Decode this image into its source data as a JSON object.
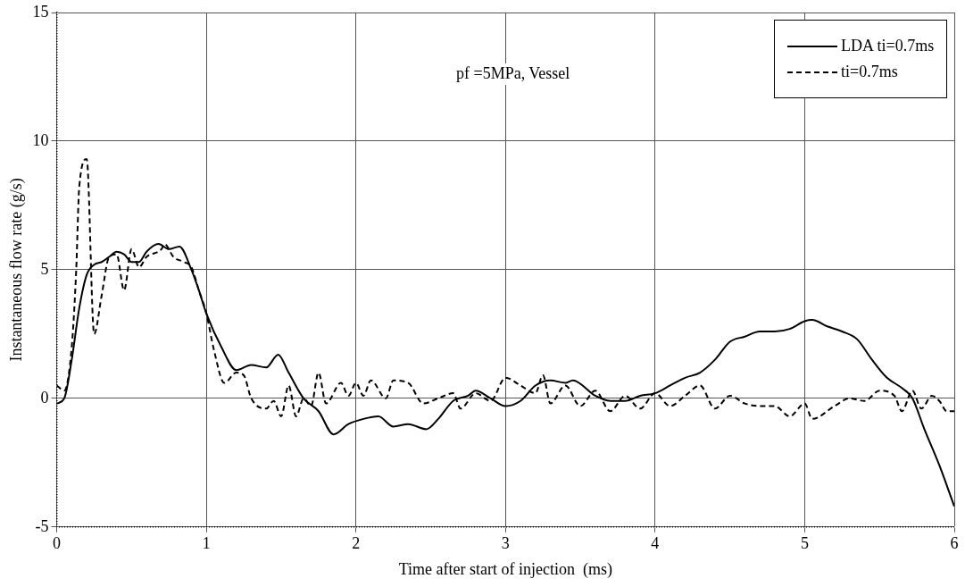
{
  "chart_data": {
    "type": "line",
    "xlabel": "Time after start of injection  (ms)",
    "ylabel": "Instantaneous flow rate (g/s)",
    "annotations": [
      "pf =5MPa, Vessel"
    ],
    "xlim": [
      0,
      6
    ],
    "xticks": [
      0,
      1,
      2,
      3,
      4,
      5,
      6
    ],
    "ylim": [
      -5,
      15
    ],
    "yticks": [
      -5,
      0,
      5,
      10,
      15
    ],
    "grid": true,
    "legend": "top right",
    "marker": "none",
    "series": [
      {
        "name": "LDA ti=0.7ms",
        "color": "#000000",
        "line_style": "solid",
        "x": [
          0,
          0.05,
          0.1,
          0.15,
          0.2,
          0.25,
          0.3,
          0.35,
          0.4,
          0.45,
          0.5,
          0.55,
          0.6,
          0.68,
          0.75,
          0.82,
          0.9,
          0.95,
          1.0,
          1.1,
          1.2,
          1.3,
          1.4,
          1.48,
          1.55,
          1.65,
          1.75,
          1.85,
          1.95,
          2.05,
          2.15,
          2.25,
          2.35,
          2.47,
          2.55,
          2.65,
          2.75,
          2.8,
          2.9,
          3.0,
          3.1,
          3.2,
          3.3,
          3.4,
          3.45,
          3.6,
          3.7,
          3.8,
          3.9,
          4.0,
          4.1,
          4.2,
          4.3,
          4.4,
          4.5,
          4.6,
          4.7,
          4.8,
          4.9,
          5.0,
          5.05,
          5.15,
          5.25,
          5.35,
          5.45,
          5.55,
          5.65,
          5.72,
          5.8,
          5.9,
          6.0
        ],
        "values": [
          -0.2,
          0,
          1.5,
          3.5,
          4.8,
          5.2,
          5.3,
          5.5,
          5.7,
          5.6,
          5.3,
          5.3,
          5.7,
          6.0,
          5.8,
          5.9,
          5.0,
          4.2,
          3.3,
          2.0,
          1.1,
          1.3,
          1.2,
          1.7,
          1.0,
          0,
          -0.5,
          -1.4,
          -1.0,
          -0.8,
          -0.7,
          -1.1,
          -1.0,
          -1.2,
          -0.8,
          -0.1,
          0.1,
          0.3,
          0,
          -0.3,
          -0.1,
          0.5,
          0.7,
          0.6,
          0.7,
          0.1,
          -0.1,
          -0.1,
          0.1,
          0.2,
          0.5,
          0.8,
          1.0,
          1.5,
          2.2,
          2.4,
          2.6,
          2.6,
          2.7,
          3.0,
          3.05,
          2.8,
          2.6,
          2.3,
          1.5,
          0.8,
          0.4,
          0,
          -1.2,
          -2.6,
          -4.2
        ]
      },
      {
        "name": "ti=0.7ms",
        "color": "#000000",
        "line_style": "dashed",
        "x": [
          0,
          0.05,
          0.1,
          0.13,
          0.15,
          0.2,
          0.25,
          0.3,
          0.35,
          0.4,
          0.45,
          0.5,
          0.55,
          0.6,
          0.7,
          0.72,
          0.78,
          0.85,
          0.9,
          0.95,
          1.0,
          1.05,
          1.12,
          1.2,
          1.25,
          1.3,
          1.4,
          1.45,
          1.5,
          1.55,
          1.6,
          1.65,
          1.7,
          1.75,
          1.8,
          1.9,
          1.95,
          2.0,
          2.05,
          2.1,
          2.2,
          2.25,
          2.35,
          2.45,
          2.55,
          2.65,
          2.7,
          2.8,
          2.9,
          3.0,
          3.1,
          3.2,
          3.25,
          3.3,
          3.4,
          3.5,
          3.6,
          3.7,
          3.8,
          3.9,
          4.0,
          4.1,
          4.2,
          4.3,
          4.4,
          4.5,
          4.6,
          4.7,
          4.8,
          4.9,
          5.0,
          5.05,
          5.2,
          5.3,
          5.4,
          5.5,
          5.6,
          5.65,
          5.72,
          5.78,
          5.85,
          5.9,
          5.95,
          6.0
        ],
        "values": [
          0.5,
          0.3,
          2,
          5,
          8.2,
          9.3,
          2.5,
          4,
          5.5,
          5.6,
          4.2,
          5.8,
          5.1,
          5.5,
          5.8,
          6.0,
          5.5,
          5.3,
          5.1,
          4.2,
          3.3,
          1.9,
          0.6,
          1.0,
          0.9,
          0,
          -0.4,
          -0.1,
          -0.7,
          0.5,
          -0.7,
          0,
          -0.3,
          1.0,
          -0.2,
          0.6,
          0.1,
          0.6,
          0.1,
          0.7,
          0,
          0.7,
          0.6,
          -0.2,
          0,
          0.2,
          -0.4,
          0.2,
          -0.1,
          0.8,
          0.5,
          0.2,
          0.9,
          -0.2,
          0.5,
          -0.3,
          0.3,
          -0.5,
          0.1,
          -0.4,
          0.2,
          -0.3,
          0.1,
          0.5,
          -0.4,
          0.1,
          -0.2,
          -0.3,
          -0.3,
          -0.7,
          -0.2,
          -0.8,
          -0.3,
          0,
          -0.1,
          0.3,
          0.1,
          -0.5,
          0.3,
          -0.4,
          0.1,
          -0.1,
          -0.5,
          -0.5
        ]
      }
    ]
  }
}
